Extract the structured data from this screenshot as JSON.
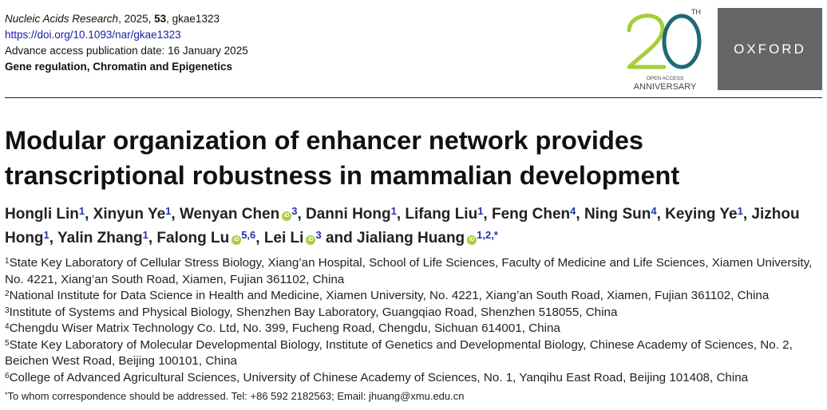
{
  "header": {
    "journal": "Nucleic Acids Research",
    "year_sep": ", 2025, ",
    "volume": "53",
    "article_sep": ", ",
    "article_id": "gkae1323",
    "doi": "https://doi.org/10.1093/nar/gkae1323",
    "access_date": "Advance access publication date: 16 January 2025",
    "section": "Gene regulation, Chromatin and Epigenetics"
  },
  "logo20": {
    "number": "20",
    "superscript": "TH",
    "line1": "OPEN ACCESS",
    "line2": "ANNIVERSARY",
    "colors": {
      "two": "#a6ce39",
      "zero": "#1e6a73"
    }
  },
  "oxford": {
    "label": "OXFORD",
    "bg": "#666666"
  },
  "title": {
    "line1": "Modular organization of enhancer network provides",
    "line2": "transcriptional robustness in mammalian development"
  },
  "authors": [
    {
      "name": "Hongli Lin",
      "aff": "1",
      "orcid": false,
      "sep": ", "
    },
    {
      "name": "Xinyun Ye",
      "aff": "1",
      "orcid": false,
      "sep": ", "
    },
    {
      "name": "Wenyan Chen",
      "aff": "3",
      "orcid": true,
      "sep": ", "
    },
    {
      "name": "Danni Hong",
      "aff": "1",
      "orcid": false,
      "sep": ", "
    },
    {
      "name": "Lifang Liu",
      "aff": "1",
      "orcid": false,
      "sep": ", "
    },
    {
      "name": "Feng Chen",
      "aff": "4",
      "orcid": false,
      "sep": ", "
    },
    {
      "name": "Ning Sun",
      "aff": "4",
      "orcid": false,
      "sep": ", "
    },
    {
      "name": "Keying Ye",
      "aff": "1",
      "orcid": false,
      "sep": ", "
    },
    {
      "name": "Jizhou Hong",
      "aff": "1",
      "orcid": false,
      "sep": ", "
    },
    {
      "name": "Yalin Zhang",
      "aff": "1",
      "orcid": false,
      "sep": ", "
    },
    {
      "name": "Falong Lu",
      "aff": "5,6",
      "orcid": true,
      "sep": ", "
    },
    {
      "name": "Lei Li",
      "aff": "3",
      "orcid": true,
      "sep": " and "
    },
    {
      "name": "Jialiang Huang",
      "aff": "1,2,*",
      "orcid": true,
      "sep": ""
    }
  ],
  "orcid_icon": {
    "label": "iD",
    "color": "#a6ce39"
  },
  "affiliations": [
    {
      "num": "1",
      "text": "State Key Laboratory of Cellular Stress Biology, Xiang’an Hospital, School of Life Sciences, Faculty of Medicine and Life Sciences, Xiamen University, No. 4221, Xiang’an South Road, Xiamen, Fujian 361102, China"
    },
    {
      "num": "2",
      "text": "National Institute for Data Science in Health and Medicine, Xiamen University, No. 4221, Xiang’an South Road, Xiamen, Fujian 361102, China"
    },
    {
      "num": "3",
      "text": "Institute of Systems and Physical Biology, Shenzhen Bay Laboratory, Guangqiao Road, Shenzhen 518055, China"
    },
    {
      "num": "4",
      "text": "Chengdu Wiser Matrix Technology Co. Ltd, No. 399, Fucheng Road, Chengdu, Sichuan 614001, China"
    },
    {
      "num": "5",
      "text": "State Key Laboratory of Molecular Developmental Biology, Institute of Genetics and Developmental Biology, Chinese Academy of Sciences, No. 2, Beichen West Road, Beijing 100101, China"
    },
    {
      "num": "6",
      "text": "College of Advanced Agricultural Sciences, University of Chinese Academy of Sciences, No. 1, Yanqihu East Road, Beijing 101408, China"
    }
  ],
  "correspondence": {
    "mark": "*",
    "text": "To whom correspondence should be addressed. Tel: +86 592 2182563; Email: jhuang@xmu.edu.cn"
  }
}
